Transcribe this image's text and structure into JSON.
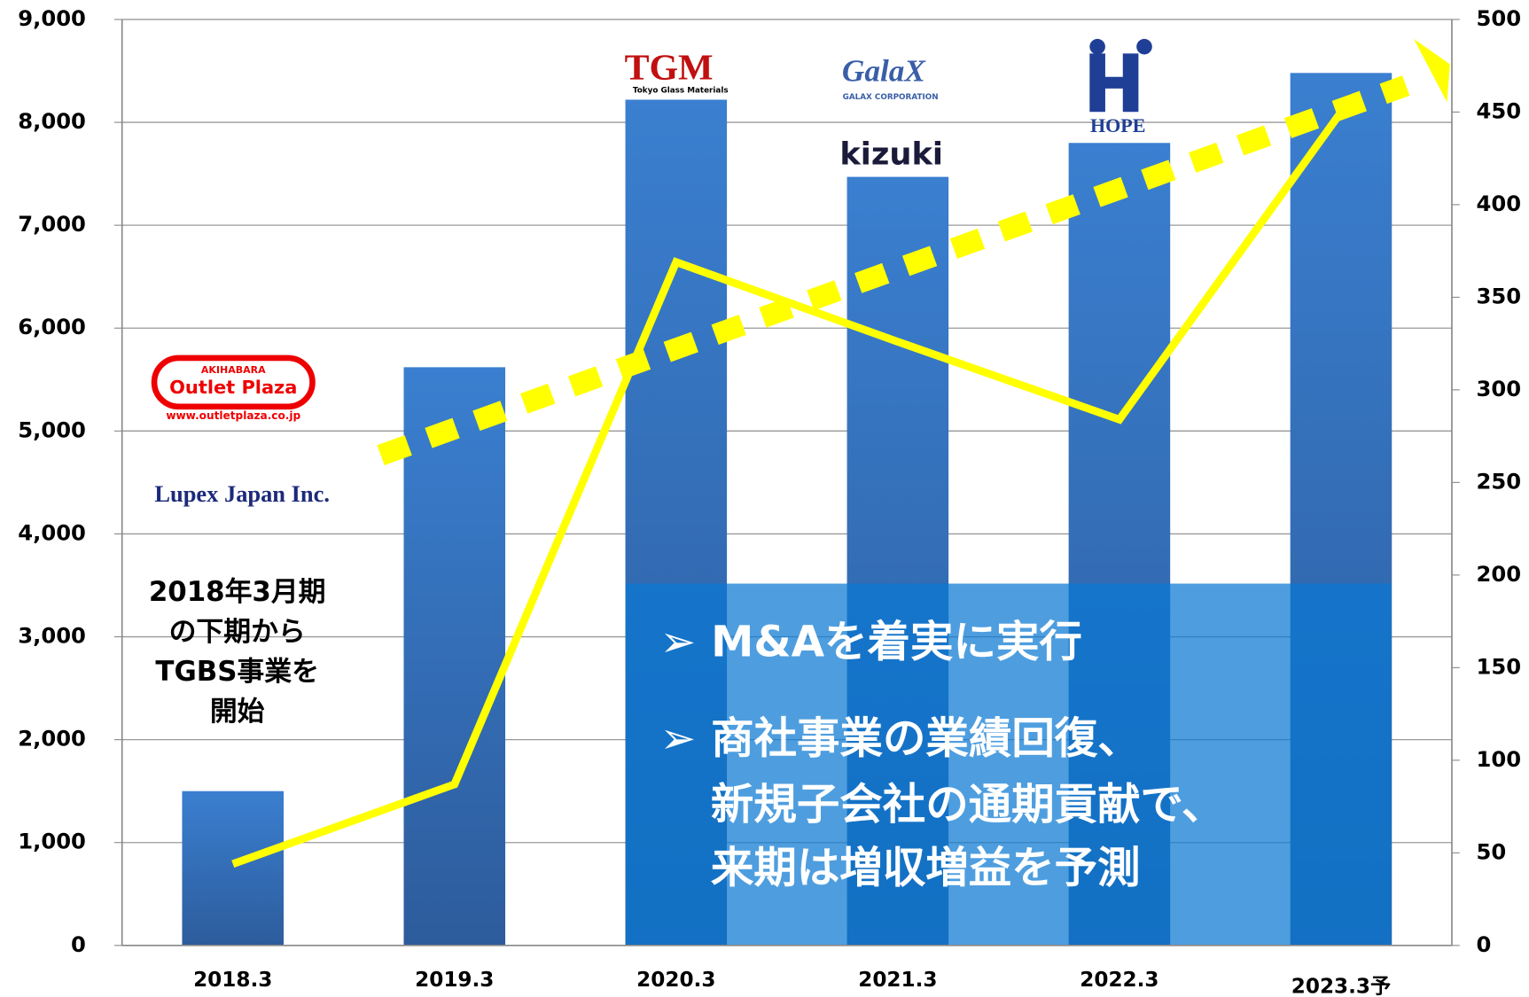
{
  "chart_data": {
    "type": "bar",
    "categories": [
      "2018.3",
      "2019.3",
      "2020.3",
      "2021.3",
      "2022.3",
      "2023.3予"
    ],
    "series": [
      {
        "color": "#3572c0",
        "values": [
          1500,
          5620,
          8220,
          7470,
          7800,
          8480
        ]
      },
      {
        "type": "line",
        "axis": "y2",
        "color": "#ffff00",
        "values": [
          44,
          87,
          369,
          326,
          284,
          450
        ]
      }
    ],
    "ylim": [
      0,
      9000
    ],
    "yticks": [
      0,
      {
        "value": 1000,
        "label": "1,000"
      },
      {
        "value": 2000,
        "label": "2,000"
      },
      {
        "value": 3000,
        "label": "3,000"
      },
      {
        "value": 4000,
        "label": "4,000"
      },
      {
        "value": 5000,
        "label": "5,000"
      },
      {
        "value": 6000,
        "label": "6,000"
      },
      {
        "value": 7000,
        "label": "7,000"
      },
      {
        "value": 8000,
        "label": "8,000"
      },
      {
        "value": 9000,
        "label": "9,000"
      }
    ],
    "y2lim": [
      0,
      500
    ],
    "y2ticks": [
      0,
      50,
      100,
      150,
      200,
      250,
      300,
      350,
      400,
      450,
      500
    ],
    "grid": true,
    "annotations": [
      "2018年3月期",
      "の下期から",
      "TGBS事業を",
      "開始"
    ],
    "callouts": [
      "➢ M&Aを着実に実行",
      "➢ 商社事業の業績回復、",
      "新規子会社の通期貢献で、",
      "来期は増収増益を予測"
    ],
    "logos": [
      "AKIHABARA",
      "Outlet Plaza",
      "www.outletplaza.co.jp",
      "Lupex Japan Inc.",
      "TGM",
      "Tokyo Glass Materials",
      "GalaX",
      "GALAX CORPORATION",
      "kizuki",
      "HOPE"
    ]
  }
}
